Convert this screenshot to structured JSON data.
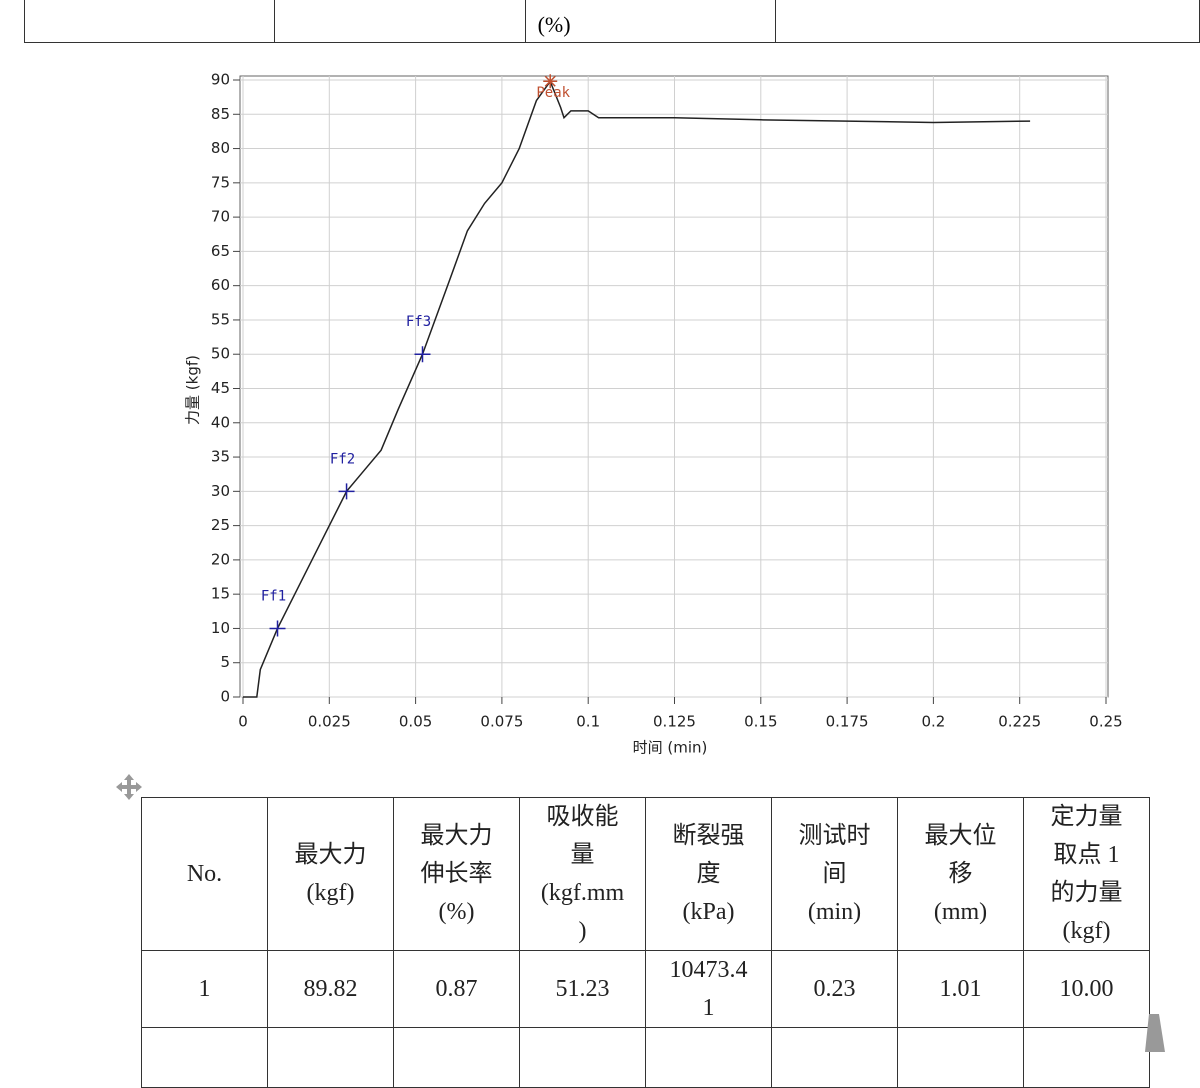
{
  "top_table": {
    "cells": [
      "(%)"
    ]
  },
  "chart_data": {
    "type": "line",
    "xlabel": "时间 (min)",
    "ylabel": "力量 (kgf)",
    "x": [
      0,
      0.004,
      0.005,
      0.01,
      0.02,
      0.03,
      0.035,
      0.04,
      0.045,
      0.052,
      0.06,
      0.065,
      0.07,
      0.075,
      0.08,
      0.085,
      0.089,
      0.092,
      0.093,
      0.095,
      0.1,
      0.103,
      0.125,
      0.15,
      0.175,
      0.2,
      0.228
    ],
    "y": [
      0,
      0,
      4,
      10,
      20,
      30,
      33,
      36,
      42,
      50,
      61,
      68,
      72,
      75,
      80,
      87,
      89.8,
      86,
      84.5,
      85.5,
      85.5,
      84.5,
      84.5,
      84.2,
      84,
      83.8,
      84
    ],
    "color": "#222222",
    "xlim": [
      0,
      0.25
    ],
    "ylim": [
      0,
      90
    ],
    "xticks": [
      0,
      0.025,
      0.05,
      0.075,
      0.1,
      0.125,
      0.15,
      0.175,
      0.2,
      0.225,
      0.25
    ],
    "yticks": [
      0,
      5,
      10,
      15,
      20,
      25,
      30,
      35,
      40,
      45,
      50,
      55,
      60,
      65,
      70,
      75,
      80,
      85,
      90
    ],
    "grid": true,
    "markers": [
      {
        "label": "Ff1",
        "x": 0.01,
        "y": 10,
        "color": "#2020a0",
        "shape": "cross"
      },
      {
        "label": "Ff2",
        "x": 0.03,
        "y": 30,
        "color": "#2020a0",
        "shape": "cross"
      },
      {
        "label": "Ff3",
        "x": 0.052,
        "y": 50,
        "color": "#2020a0",
        "shape": "cross"
      },
      {
        "label": "Peak",
        "x": 0.089,
        "y": 89.82,
        "color": "#c05030",
        "shape": "star"
      }
    ]
  },
  "table": {
    "header": [
      "No.",
      "最大力\n(kgf)",
      "最大力\n伸长率\n(%)",
      "吸收能\n量\n(kgf.mm\n)",
      "断裂强\n度\n(kPa)",
      "测试时\n间\n(min)",
      "最大位\n移\n(mm)",
      "定力量\n取点 1\n的力量\n(kgf)"
    ],
    "rows": [
      [
        "1",
        "89.82",
        "0.87",
        "51.23",
        "10473.41",
        "0.23",
        "1.01",
        "10.00"
      ]
    ]
  }
}
